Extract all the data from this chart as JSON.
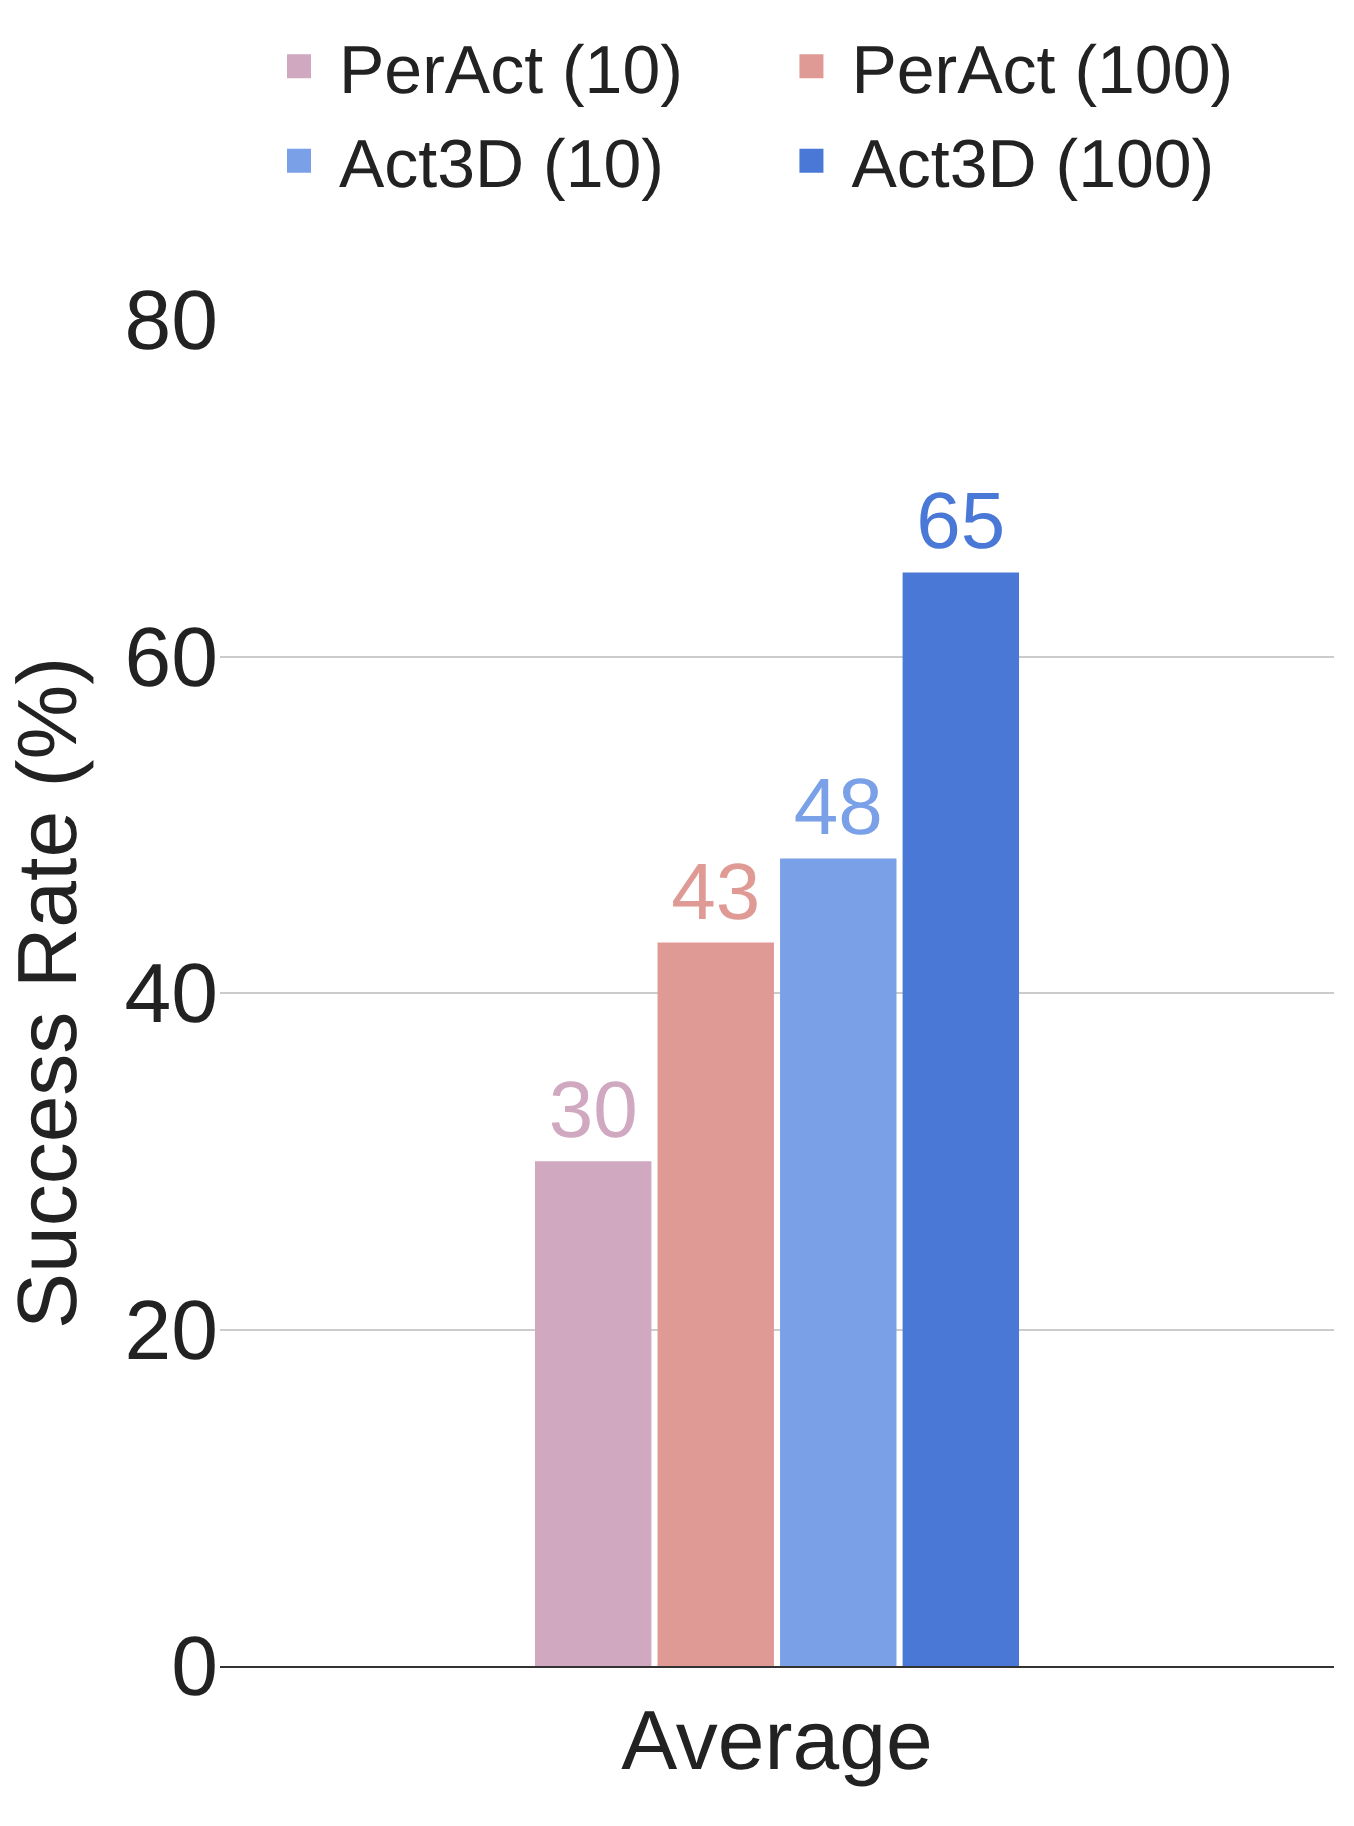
{
  "chart_data": {
    "type": "bar",
    "ylabel": "Success Rate (%)",
    "categories": [
      "Average"
    ],
    "series": [
      {
        "name": "PerAct (10)",
        "color": "#d0a8c0",
        "values": [
          30
        ]
      },
      {
        "name": "PerAct (100)",
        "color": "#e09a95",
        "values": [
          43
        ]
      },
      {
        "name": "Act3D (10)",
        "color": "#7aa0e8",
        "values": [
          48
        ]
      },
      {
        "name": "Act3D (100)",
        "color": "#4a78d6",
        "values": [
          65
        ]
      }
    ],
    "ylim": [
      0,
      80
    ],
    "yticks": [
      0,
      20,
      40,
      60,
      80
    ],
    "grid": "y",
    "legend": "top",
    "data_labels": true
  }
}
